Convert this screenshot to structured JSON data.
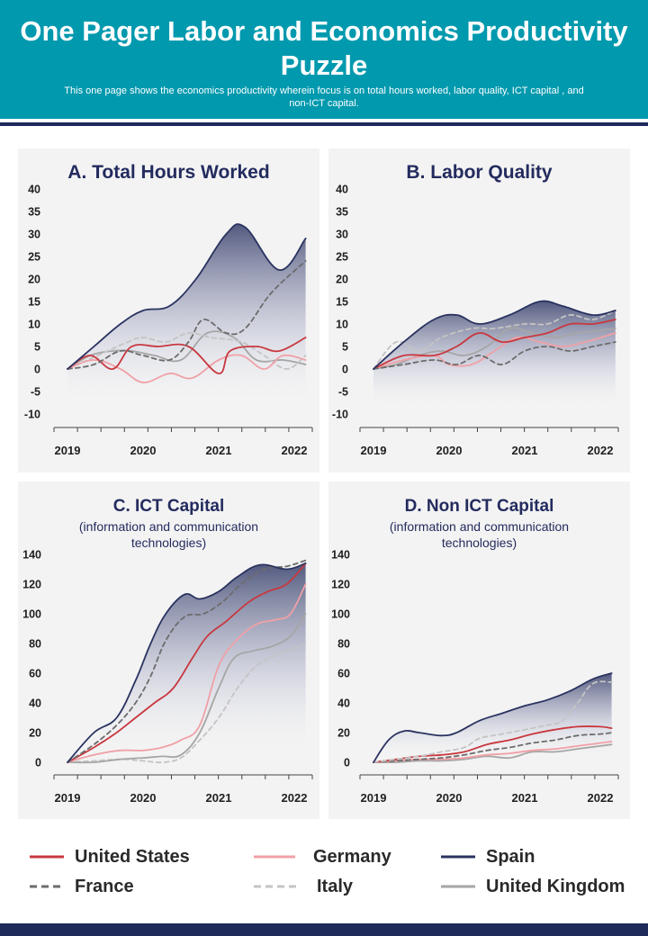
{
  "header": {
    "title": "One Pager Labor and Economics Productivity Puzzle",
    "subtitle": "This one page shows the economics productivity wherein focus is on  total hours worked, labor quality, ICT capital ,  and non-ICT capital."
  },
  "colors": {
    "header_bg": "#0099ae",
    "dark_navy": "#1e2a5a",
    "panel_bg": "#f3f3f3",
    "title_text": "#232b5e"
  },
  "legend": [
    {
      "name": "United States",
      "color": "#c8383f",
      "dash": "solid"
    },
    {
      "name": "Germany",
      "color": "#f0a0a6",
      "dash": "solid"
    },
    {
      "name": "Spain",
      "color": "#2a3360",
      "dash": "solid"
    },
    {
      "name": "France",
      "color": "#6c6c6c",
      "dash": "dashed"
    },
    {
      "name": "Italy",
      "color": "#c4c4c4",
      "dash": "dashed"
    },
    {
      "name": "United Kingdom",
      "color": "#a6a6a6",
      "dash": "solid"
    }
  ],
  "chart_data": [
    {
      "type": "line",
      "title": "A. Total Hours Worked",
      "subtitle": "",
      "x_ticks": [
        "2019",
        "2020",
        "2021",
        "2022"
      ],
      "ylim": [
        -10,
        40
      ],
      "y_ticks": [
        -10,
        -5,
        0,
        5,
        10,
        15,
        20,
        25,
        30,
        35,
        40
      ],
      "series": [
        {
          "name": "Spain",
          "x": [
            0,
            0.35,
            0.7,
            1.0,
            1.35,
            1.7,
            2.1,
            2.35,
            2.8,
            3.15
          ],
          "values": [
            0,
            5,
            10,
            13,
            14,
            20,
            30,
            31.5,
            22,
            29
          ]
        },
        {
          "name": "France",
          "x": [
            0,
            0.35,
            0.7,
            1.0,
            1.35,
            1.6,
            1.8,
            2.1,
            2.35,
            2.7,
            3.15
          ],
          "values": [
            0,
            1,
            4,
            3,
            2,
            6,
            11,
            8,
            9,
            17,
            24
          ]
        },
        {
          "name": "United States",
          "x": [
            0,
            0.3,
            0.6,
            0.85,
            1.2,
            1.6,
            2.0,
            2.15,
            2.5,
            2.8,
            3.15
          ],
          "values": [
            0,
            3,
            0,
            5,
            5,
            5,
            -1,
            4,
            5,
            4,
            7
          ]
        },
        {
          "name": "Germany",
          "x": [
            0,
            0.35,
            0.7,
            1.0,
            1.35,
            1.65,
            2.0,
            2.3,
            2.6,
            2.85,
            3.15
          ],
          "values": [
            0,
            2,
            0,
            -3,
            -1,
            -2,
            2,
            3,
            0,
            3,
            2
          ]
        },
        {
          "name": "Italy",
          "x": [
            0,
            0.4,
            0.8,
            1.0,
            1.3,
            1.6,
            1.9,
            2.3,
            2.6,
            2.9,
            3.15
          ],
          "values": [
            0,
            3,
            6,
            7,
            6,
            8,
            7,
            6,
            3,
            0,
            3
          ]
        },
        {
          "name": "United Kingdom",
          "x": [
            0,
            0.3,
            0.6,
            0.85,
            1.15,
            1.5,
            1.85,
            2.2,
            2.5,
            2.85,
            3.15
          ],
          "values": [
            0,
            3,
            4,
            4,
            3,
            2,
            8,
            7,
            2,
            2,
            1
          ]
        }
      ]
    },
    {
      "type": "line",
      "title": "B. Labor Quality",
      "subtitle": "",
      "x_ticks": [
        "2019",
        "2020",
        "2021",
        "2022"
      ],
      "ylim": [
        -10,
        40
      ],
      "y_ticks": [
        -10,
        -5,
        0,
        5,
        10,
        15,
        20,
        25,
        30,
        35,
        40
      ],
      "series": [
        {
          "name": "Spain",
          "x": [
            0,
            0.4,
            0.8,
            1.1,
            1.4,
            1.8,
            2.2,
            2.5,
            2.9,
            3.2
          ],
          "values": [
            0,
            6,
            11,
            12,
            10,
            12,
            15,
            14,
            12,
            13
          ]
        },
        {
          "name": "Italy",
          "x": [
            0,
            0.3,
            0.6,
            0.9,
            1.3,
            1.6,
            2.0,
            2.3,
            2.6,
            2.9,
            3.2
          ],
          "values": [
            0,
            6,
            4,
            7,
            9,
            9,
            10,
            10,
            12,
            11,
            13
          ]
        },
        {
          "name": "France",
          "x": [
            0,
            0.4,
            0.8,
            1.1,
            1.4,
            1.7,
            2.0,
            2.3,
            2.6,
            2.9,
            3.2
          ],
          "values": [
            0,
            1,
            2,
            1,
            3,
            1,
            4,
            5,
            4,
            5,
            6
          ]
        },
        {
          "name": "United States",
          "x": [
            0,
            0.4,
            0.8,
            1.1,
            1.4,
            1.7,
            2.0,
            2.3,
            2.6,
            2.9,
            3.2
          ],
          "values": [
            0,
            3,
            3,
            5,
            8,
            6,
            7,
            8,
            10,
            10,
            11
          ]
        },
        {
          "name": "Germany",
          "x": [
            0,
            0.4,
            0.8,
            1.0,
            1.3,
            1.6,
            1.9,
            2.2,
            2.5,
            2.8,
            3.2
          ],
          "values": [
            0,
            2,
            3,
            1,
            1,
            4,
            7,
            6,
            5,
            6,
            8
          ]
        },
        {
          "name": "United Kingdom",
          "x": [
            0,
            0.3,
            0.6,
            0.9,
            1.2,
            1.5,
            1.8,
            2.1,
            2.4,
            2.7,
            3.2
          ],
          "values": [
            0,
            1,
            3,
            4,
            3,
            5,
            9,
            8,
            7,
            8,
            9
          ]
        }
      ]
    },
    {
      "type": "line",
      "title": "C. ICT Capital",
      "subtitle": "(information and communication technologies)",
      "x_ticks": [
        "2019",
        "2020",
        "2021",
        "2022"
      ],
      "ylim": [
        0,
        140
      ],
      "y_ticks": [
        0,
        20,
        40,
        60,
        80,
        100,
        120,
        140
      ],
      "series": [
        {
          "name": "Spain",
          "x": [
            0,
            0.35,
            0.65,
            0.9,
            1.1,
            1.3,
            1.55,
            1.75,
            2.0,
            2.25,
            2.55,
            2.9,
            3.15
          ],
          "values": [
            0,
            20,
            30,
            55,
            80,
            100,
            113,
            110,
            115,
            125,
            133,
            130,
            134
          ]
        },
        {
          "name": "France",
          "x": [
            0,
            0.35,
            0.65,
            0.9,
            1.1,
            1.3,
            1.55,
            1.8,
            2.05,
            2.3,
            2.6,
            2.9,
            3.15
          ],
          "values": [
            0,
            12,
            25,
            40,
            58,
            82,
            98,
            100,
            108,
            120,
            130,
            132,
            136
          ]
        },
        {
          "name": "United States",
          "x": [
            0,
            0.35,
            0.65,
            0.9,
            1.15,
            1.4,
            1.65,
            1.85,
            2.1,
            2.4,
            2.65,
            2.9,
            3.15
          ],
          "values": [
            0,
            10,
            20,
            30,
            40,
            50,
            70,
            85,
            95,
            108,
            115,
            120,
            134
          ]
        },
        {
          "name": "Germany",
          "x": [
            0,
            0.35,
            0.7,
            1.0,
            1.25,
            1.5,
            1.75,
            2.0,
            2.25,
            2.5,
            2.75,
            2.95,
            3.15
          ],
          "values": [
            0,
            5,
            8,
            8,
            10,
            15,
            25,
            65,
            83,
            93,
            96,
            100,
            120
          ]
        },
        {
          "name": "United Kingdom",
          "x": [
            0,
            0.35,
            0.7,
            1.0,
            1.25,
            1.5,
            1.75,
            2.0,
            2.2,
            2.45,
            2.7,
            2.95,
            3.15
          ],
          "values": [
            0,
            0,
            2,
            3,
            4,
            5,
            20,
            50,
            70,
            75,
            78,
            85,
            100
          ]
        },
        {
          "name": "Italy",
          "x": [
            0,
            0.35,
            0.7,
            1.0,
            1.25,
            1.5,
            1.75,
            2.0,
            2.25,
            2.5,
            2.75,
            2.95,
            3.15
          ],
          "values": [
            0,
            1,
            2,
            1,
            0,
            3,
            15,
            30,
            50,
            65,
            72,
            76,
            80
          ]
        }
      ]
    },
    {
      "type": "line",
      "title": "D. Non ICT Capital",
      "subtitle": "(information and communication technologies)",
      "x_ticks": [
        "2019",
        "2020",
        "2021",
        "2022"
      ],
      "ylim": [
        0,
        140
      ],
      "y_ticks": [
        0,
        20,
        40,
        60,
        80,
        100,
        120,
        140
      ],
      "series": [
        {
          "name": "Spain",
          "x": [
            0,
            0.2,
            0.4,
            0.6,
            0.9,
            1.1,
            1.4,
            1.7,
            2.0,
            2.3,
            2.6,
            2.9,
            3.15
          ],
          "values": [
            0,
            15,
            21,
            20,
            18,
            20,
            28,
            33,
            38,
            42,
            48,
            56,
            60
          ]
        },
        {
          "name": "Italy",
          "x": [
            0,
            0.3,
            0.6,
            0.9,
            1.2,
            1.4,
            1.7,
            2.0,
            2.3,
            2.5,
            2.7,
            2.9,
            3.15
          ],
          "values": [
            0,
            2,
            4,
            7,
            10,
            16,
            19,
            22,
            25,
            28,
            40,
            53,
            54
          ]
        },
        {
          "name": "United States",
          "x": [
            0,
            0.3,
            0.6,
            0.9,
            1.2,
            1.5,
            1.8,
            2.1,
            2.4,
            2.7,
            3.0,
            3.15
          ],
          "values": [
            0,
            2,
            4,
            5,
            7,
            12,
            15,
            19,
            22,
            24,
            24,
            23
          ]
        },
        {
          "name": "France",
          "x": [
            0,
            0.3,
            0.6,
            0.9,
            1.2,
            1.5,
            1.8,
            2.1,
            2.4,
            2.7,
            3.0,
            3.15
          ],
          "values": [
            0,
            1,
            2,
            3,
            5,
            8,
            10,
            13,
            15,
            18,
            19,
            20
          ]
        },
        {
          "name": "Germany",
          "x": [
            0,
            0.3,
            0.6,
            0.9,
            1.2,
            1.5,
            1.8,
            2.1,
            2.4,
            2.7,
            3.0,
            3.15
          ],
          "values": [
            0,
            1,
            2,
            2,
            3,
            5,
            6,
            8,
            9,
            11,
            13,
            14
          ]
        },
        {
          "name": "United Kingdom",
          "x": [
            0,
            0.3,
            0.6,
            0.9,
            1.2,
            1.5,
            1.8,
            2.1,
            2.4,
            2.7,
            3.0,
            3.15
          ],
          "values": [
            0,
            0,
            1,
            1,
            2,
            4,
            3,
            7,
            7,
            9,
            11,
            12
          ]
        }
      ]
    }
  ]
}
